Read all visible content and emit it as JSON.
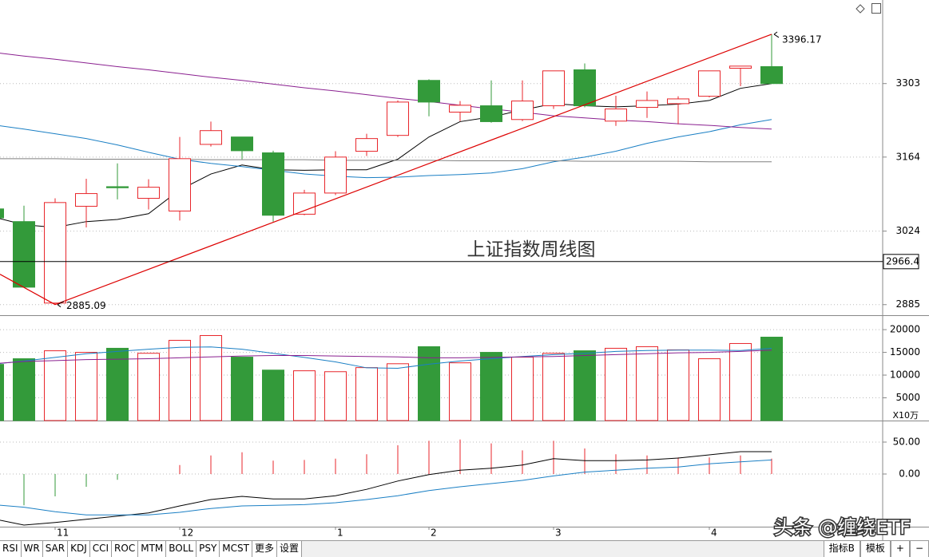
{
  "chart_data": [
    {
      "type": "candlestick",
      "title": "上证指数周线图",
      "categories": [
        null,
        null,
        "11",
        null,
        null,
        null,
        "12",
        null,
        null,
        null,
        null,
        "1",
        null,
        null,
        "2",
        null,
        null,
        null,
        "3",
        null,
        null,
        null,
        null,
        "4",
        null,
        null
      ],
      "open": [
        3066,
        3042,
        2888,
        3071,
        3108,
        3086,
        3062,
        3188,
        3202,
        3172,
        3056,
        3096,
        3175,
        3205,
        3309,
        3249,
        3261,
        3235,
        3261,
        3329,
        3232,
        3258,
        3265,
        3279,
        3332,
        3335
      ],
      "high": [
        3070,
        3072,
        3086,
        3123,
        3152,
        3122,
        3202,
        3231,
        3202,
        3176,
        3102,
        3175,
        3208,
        3271,
        3311,
        3270,
        3309,
        3309,
        3327,
        3341,
        3280,
        3288,
        3279,
        3327,
        3336,
        3396.17
      ],
      "low": [
        3045,
        2918,
        2885.09,
        3031,
        3084,
        3065,
        3044,
        3184,
        3160,
        3042,
        3054,
        3092,
        3166,
        3202,
        3241,
        3232,
        3229,
        3232,
        3255,
        3258,
        3223,
        3238,
        3226,
        3277,
        3298,
        3303
      ],
      "close": [
        3049,
        2918,
        3078,
        3095,
        3106,
        3107,
        3161,
        3214,
        3176,
        3054,
        3096,
        3164,
        3199,
        3268,
        3268,
        3262,
        3231,
        3270,
        3327,
        3261,
        3255,
        3271,
        3274,
        3327,
        3336,
        3303
      ],
      "up_color": "#e8262b",
      "down_color": "#339a3a",
      "series": [
        {
          "color": "#000000",
          "values": [
            3051,
            3036,
            3031,
            3042,
            3046,
            3057,
            3102,
            3132,
            3149,
            3140,
            3139,
            3140,
            3140,
            3160,
            3202,
            3231,
            3240,
            3253,
            3265,
            3261,
            3259,
            3261,
            3264,
            3271,
            3294,
            3303
          ]
        },
        {
          "color": "#1a7fc4",
          "values": [
            3225,
            3217,
            3208,
            3199,
            3187,
            3173,
            3160,
            3152,
            3146,
            3139,
            3132,
            3128,
            3125,
            3126,
            3129,
            3131,
            3134,
            3142,
            3155,
            3164,
            3175,
            3190,
            3202,
            3212,
            3225,
            3235
          ]
        },
        {
          "color": "#8a2090",
          "values": [
            3362,
            3355,
            3349,
            3342,
            3335,
            3329,
            3322,
            3315,
            3309,
            3302,
            3295,
            3289,
            3282,
            3275,
            3269,
            3262,
            3255,
            3249,
            3242,
            3238,
            3234,
            3231,
            3227,
            3224,
            3220,
            3217
          ]
        },
        {
          "color": "#808080",
          "values": [
            3161,
            3161,
            3161,
            3160,
            3160,
            3160,
            3160,
            3159,
            3159,
            3159,
            3159,
            3158,
            3158,
            3158,
            3158,
            3157,
            3157,
            3157,
            3157,
            3156,
            3156,
            3156,
            3156,
            3155,
            3155,
            3155
          ]
        }
      ],
      "hline": 2966.4,
      "ylim": [
        2865,
        3461
      ],
      "yticks": [
        2885,
        3024,
        3164,
        3303
      ],
      "grid": true
    },
    {
      "type": "bar",
      "unit_label": "X10万",
      "values": [
        12350,
        13600,
        15350,
        15000,
        15900,
        14800,
        17650,
        18700,
        13950,
        11100,
        10950,
        10750,
        11650,
        12500,
        16250,
        12700,
        15000,
        13950,
        14800,
        15350,
        15900,
        16250,
        15550,
        13600,
        16950,
        18350
      ],
      "series": [
        {
          "color": "#1a7fc4",
          "values": [
            12400,
            13100,
            13900,
            14700,
            15200,
            15700,
            16100,
            16200,
            15700,
            14800,
            13900,
            12900,
            11600,
            11500,
            12400,
            13100,
            13600,
            14100,
            14500,
            14800,
            15200,
            15400,
            15500,
            15500,
            15400,
            15900
          ]
        },
        {
          "color": "#8a2090",
          "values": [
            12500,
            13000,
            13200,
            13400,
            13500,
            13600,
            13800,
            14000,
            14200,
            14300,
            14300,
            14200,
            14100,
            14000,
            13800,
            13800,
            13900,
            14000,
            14100,
            14300,
            14500,
            14700,
            14900,
            15000,
            15200,
            15500
          ]
        }
      ],
      "ylim": [
        0,
        23000
      ],
      "yticks": [
        5000,
        10000,
        15000,
        20000
      ],
      "grid": true
    },
    {
      "type": "macd",
      "values": [
        -55,
        -49,
        -35,
        -20,
        -9,
        0,
        14,
        29,
        34,
        21,
        22,
        24,
        31,
        45,
        52,
        54,
        48,
        37,
        52,
        40,
        31,
        29,
        26,
        26,
        29,
        24
      ],
      "series": [
        {
          "color": "#000000",
          "values": [
            -70,
            -80,
            -76,
            -71,
            -66,
            -61,
            -50,
            -40,
            -35,
            -39,
            -39,
            -34,
            -24,
            -11,
            -1,
            6,
            9,
            14,
            24,
            21,
            21,
            22,
            25,
            30,
            35,
            35
          ]
        },
        {
          "color": "#1a7fc4",
          "values": [
            -48,
            -52,
            -59,
            -64,
            -64,
            -64,
            -60,
            -54,
            -50,
            -49,
            -48,
            -45,
            -40,
            -34,
            -26,
            -20,
            -15,
            -10,
            -3,
            3,
            6,
            9,
            11,
            16,
            19,
            22
          ]
        }
      ],
      "ylim": [
        -82.5,
        82.5
      ],
      "yticks": [
        {
          "value": 0,
          "label": "0.00"
        },
        {
          "value": 50,
          "label": "50.00"
        }
      ],
      "grid": true
    }
  ],
  "toolbar": {
    "tabs": [
      "RSI",
      "WR",
      "SAR",
      "KDJ",
      "CCI",
      "ROC",
      "MTM",
      "BOLL",
      "PSY",
      "MCST",
      "更多",
      "设置"
    ],
    "right": [
      "指标B",
      "模板",
      "+",
      "−"
    ]
  },
  "watermark": "头条 @缠绕ETF"
}
